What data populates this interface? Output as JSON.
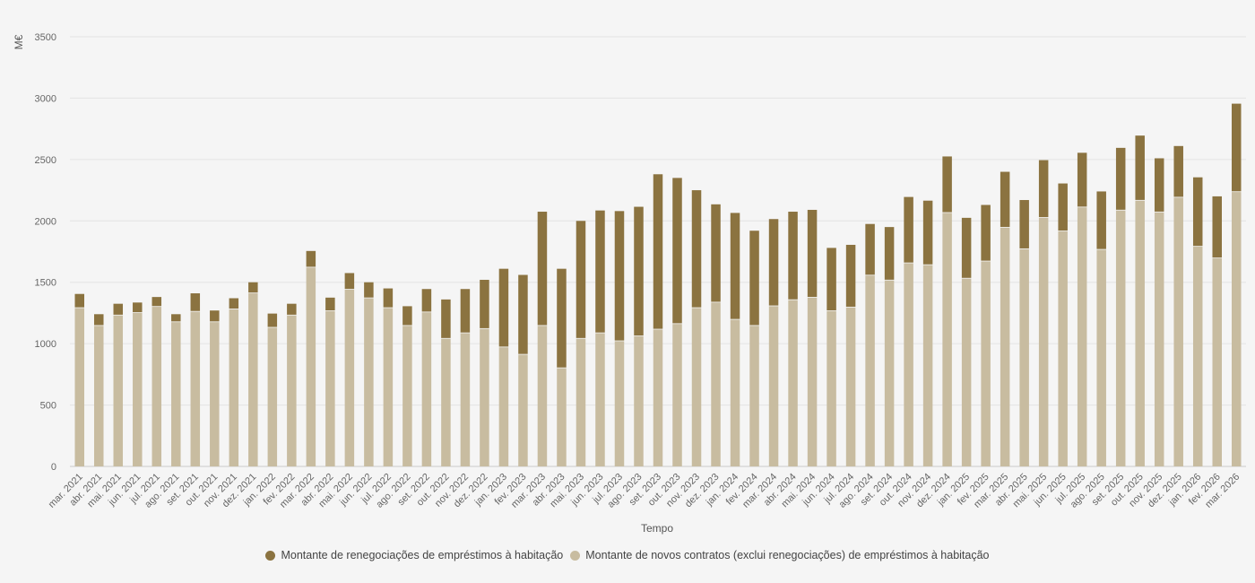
{
  "chart_data": {
    "type": "bar",
    "stacked": true,
    "xlabel": "Tempo",
    "ylabel": "M€",
    "ylim": [
      0,
      3500
    ],
    "yticks": [
      0,
      500,
      1000,
      1500,
      2000,
      2500,
      3000,
      3500
    ],
    "grid": true,
    "legend_position": "bottom",
    "categories": [
      "mar. 2021",
      "abr. 2021",
      "mai. 2021",
      "jun. 2021",
      "jul. 2021",
      "ago. 2021",
      "set. 2021",
      "out. 2021",
      "nov. 2021",
      "dez. 2021",
      "jan. 2022",
      "fev. 2022",
      "mar. 2022",
      "abr. 2022",
      "mai. 2022",
      "jun. 2022",
      "jul. 2022",
      "ago. 2022",
      "set. 2022",
      "out. 2022",
      "nov. 2022",
      "dez. 2022",
      "jan. 2023",
      "fev. 2023",
      "mar. 2023",
      "abr. 2023",
      "mai. 2023",
      "jun. 2023",
      "jul. 2023",
      "ago. 2023",
      "set. 2023",
      "out. 2023",
      "nov. 2023",
      "dez. 2023",
      "jan. 2024",
      "fev. 2024",
      "mar. 2024",
      "abr. 2024",
      "mai. 2024",
      "jun. 2024",
      "jul. 2024",
      "ago. 2024",
      "set. 2024",
      "out. 2024",
      "nov. 2024",
      "dez. 2024",
      "jan. 2025",
      "fev. 2025",
      "mar. 2025",
      "abr. 2025",
      "mai. 2025",
      "jun. 2025",
      "jul. 2025",
      "ago. 2025",
      "set. 2025",
      "out. 2025",
      "nov. 2025",
      "dez. 2025",
      "jan. 2026",
      "fev. 2026",
      "mar. 2026"
    ],
    "series": [
      {
        "name": "Montante de novos contratos (exclui renegociações) de empréstimos à habitação",
        "color": "#c8bca0",
        "values": [
          1290,
          1145,
          1230,
          1250,
          1300,
          1175,
          1260,
          1175,
          1280,
          1410,
          1130,
          1230,
          1620,
          1265,
          1440,
          1370,
          1290,
          1145,
          1255,
          1040,
          1085,
          1120,
          970,
          910,
          1145,
          800,
          1040,
          1085,
          1020,
          1060,
          1115,
          1160,
          1290,
          1335,
          1195,
          1145,
          1305,
          1355,
          1375,
          1265,
          1295,
          1555,
          1515,
          1655,
          1640,
          2065,
          1530,
          1670,
          1945,
          1770,
          2025,
          1915,
          2110,
          1765,
          2085,
          2165,
          2070,
          2190,
          1790,
          1695,
          2235
        ]
      },
      {
        "name": "Montante de renegociações de empréstimos à habitação",
        "color": "#8b7340",
        "values": [
          115,
          95,
          95,
          85,
          80,
          65,
          150,
          95,
          90,
          90,
          115,
          95,
          135,
          110,
          135,
          130,
          160,
          160,
          190,
          320,
          360,
          400,
          640,
          650,
          930,
          810,
          960,
          1000,
          1060,
          1055,
          1265,
          1190,
          960,
          800,
          870,
          775,
          710,
          720,
          715,
          515,
          510,
          420,
          435,
          540,
          525,
          460,
          495,
          460,
          455,
          400,
          470,
          390,
          445,
          475,
          510,
          530,
          440,
          420,
          565,
          505,
          720
        ]
      }
    ],
    "legend": [
      {
        "label": "Montante de renegociações de empréstimos à habitação",
        "color": "#8b7340"
      },
      {
        "label": "Montante de novos contratos (exclui renegociações) de empréstimos à habitação",
        "color": "#c8bca0"
      }
    ]
  }
}
